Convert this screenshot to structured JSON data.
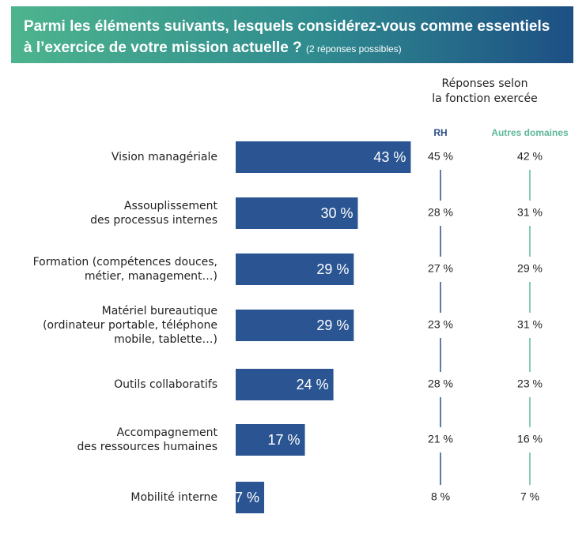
{
  "chart_data": {
    "type": "bar",
    "orientation": "horizontal",
    "title": "Parmi les éléments suivants, lesquels considérez-vous comme essentiels à l’exercice de votre mission actuelle ?",
    "subtitle": "(2 réponses possibles)",
    "categories": [
      "Vision managériale",
      "Assouplissement\ndes processus internes",
      "Formation (compétences douces,\nmétier, management…)",
      "Matériel bureautique\n(ordinateur portable, téléphone\nmobile, tablette…)",
      "Outils collaboratifs",
      "Accompagnement\ndes ressources humaines",
      "Mobilité interne"
    ],
    "values": [
      43,
      30,
      29,
      29,
      24,
      17,
      7
    ],
    "value_labels": [
      "43 %",
      "30 %",
      "29 %",
      "29 %",
      "24 %",
      "17 %",
      "7 %"
    ],
    "color": "#2b5592",
    "table": {
      "title": "Réponses selon\nla fonction exercée",
      "series": [
        {
          "name": "RH",
          "color": "#2b4f8a",
          "values": [
            45,
            28,
            27,
            23,
            28,
            21,
            8
          ],
          "value_labels": [
            "45 %",
            "28 %",
            "27 %",
            "23 %",
            "28 %",
            "21 %",
            "8 %"
          ]
        },
        {
          "name": "Autres domaines",
          "color": "#5fb89a",
          "values": [
            42,
            31,
            29,
            31,
            23,
            16,
            7
          ],
          "value_labels": [
            "42 %",
            "31 %",
            "29 %",
            "31 %",
            "23 %",
            "16 %",
            "7 %"
          ]
        }
      ]
    }
  }
}
